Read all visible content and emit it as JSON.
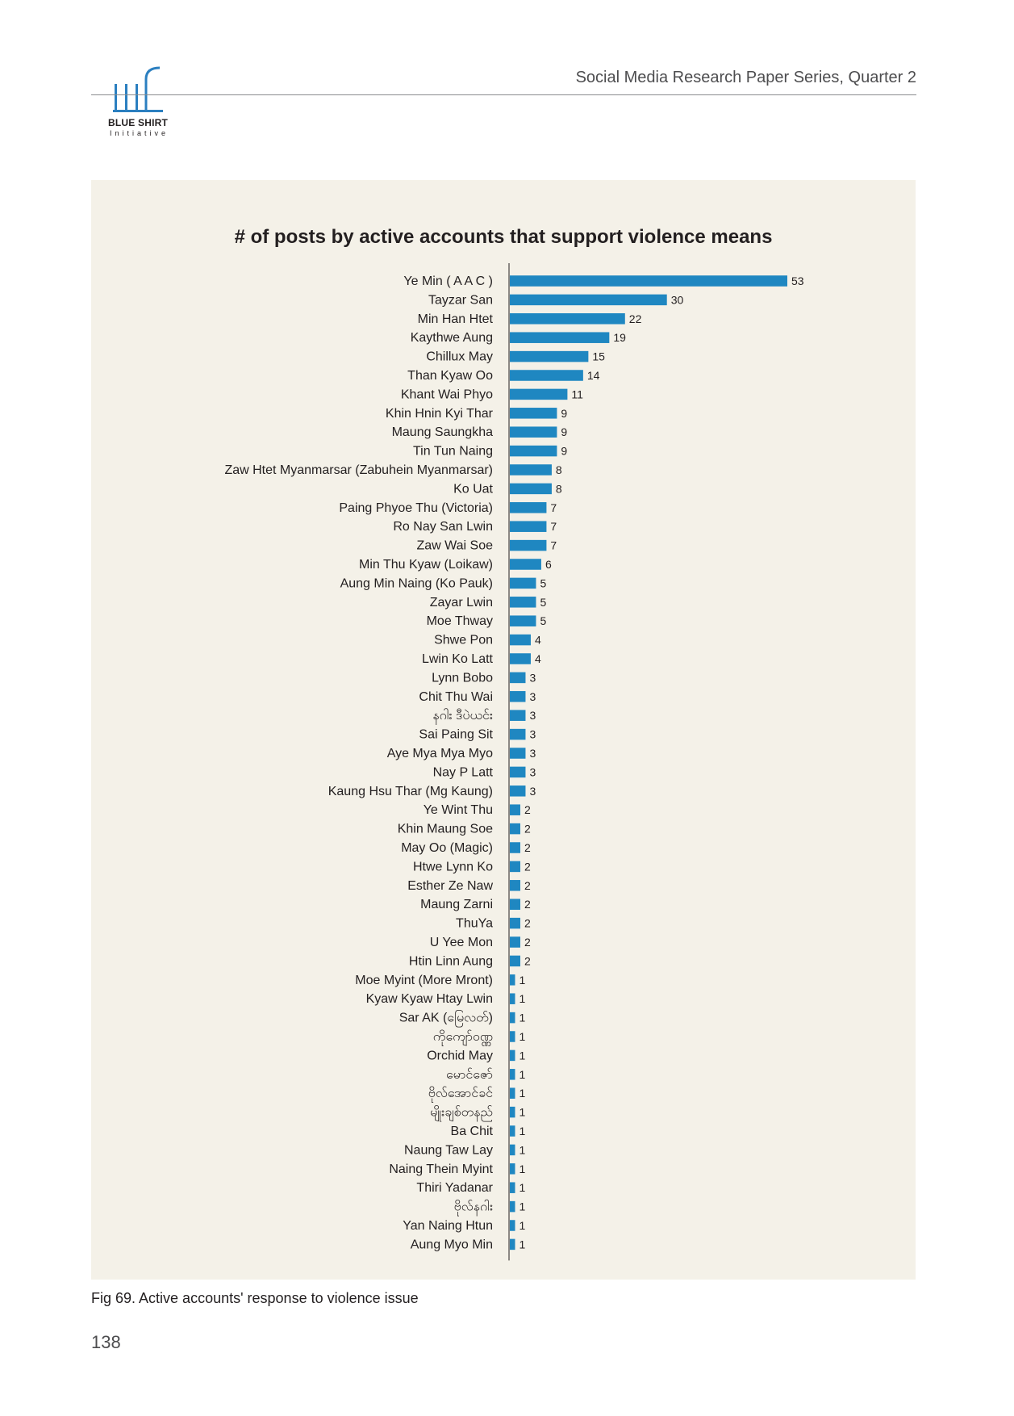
{
  "header": {
    "logo_name": "BLUE SHIRT",
    "logo_sub": "Initiative",
    "series_title": "Social Media Research Paper Series, Quarter 2"
  },
  "colors": {
    "bar": "#1f87c1",
    "panel_background": "#f4f1e8",
    "logo": "#2b7fc0"
  },
  "chart_data": {
    "type": "bar",
    "orientation": "horizontal",
    "title": "# of posts by active accounts that support violence means",
    "xlabel": "",
    "ylabel": "",
    "xlim": [
      0,
      53
    ],
    "grid": false,
    "categories": [
      "Ye Min ( A A C )",
      "Tayzar San",
      "Min Han Htet",
      "Kaythwe Aung",
      "Chillux May",
      "Than Kyaw Oo",
      "Khant Wai Phyo",
      "Khin Hnin Kyi Thar",
      "Maung Saungkha",
      "Tin Tun Naing",
      "Zaw Htet Myanmarsar (Zabuhein Myanmarsar)",
      "Ko Uat",
      "Paing Phyoe Thu (Victoria)",
      "Ro Nay San Lwin",
      "Zaw Wai Soe",
      "Min Thu Kyaw (Loikaw)",
      "Aung Min Naing (Ko Pauk)",
      "Zayar Lwin",
      "Moe Thway",
      "Shwe Pon",
      "Lwin Ko Latt",
      "Lynn Bobo",
      "Chit Thu Wai",
      "နဂါး ဒီပဲယင်း",
      "Sai Paing Sit",
      "Aye Mya Mya Myo",
      "Nay P Latt",
      "Kaung Hsu Thar (Mg Kaung)",
      "Ye Wint Thu",
      "Khin Maung Soe",
      "May Oo (Magic)",
      "Htwe Lynn Ko",
      "Esther Ze Naw",
      "Maung Zarni",
      "ThuYa",
      "U Yee Mon",
      "Htin Linn Aung",
      "Moe Myint (More Mront)",
      "Kyaw Kyaw Htay Lwin",
      "Sar AK (မြေလတ်)",
      "ကိုကျော်ဝဏ္ဏ",
      "Orchid May",
      "မောင်ဇော်",
      "ဗိုလ်အောင်ခင်",
      "မျိုးချစ်တနည်",
      "Ba Chit",
      "Naung Taw Lay",
      "Naing Thein Myint",
      "Thiri Yadanar",
      "ဗိုလ်နဂါး",
      "Yan Naing Htun",
      "Aung Myo Min"
    ],
    "values": [
      53,
      30,
      22,
      19,
      15,
      14,
      11,
      9,
      9,
      9,
      8,
      8,
      7,
      7,
      7,
      6,
      5,
      5,
      5,
      4,
      4,
      3,
      3,
      3,
      3,
      3,
      3,
      3,
      2,
      2,
      2,
      2,
      2,
      2,
      2,
      2,
      2,
      1,
      1,
      1,
      1,
      1,
      1,
      1,
      1,
      1,
      1,
      1,
      1,
      1,
      1,
      1
    ]
  },
  "caption": "Fig 69. Active accounts' response to violence issue",
  "page_number": "138"
}
